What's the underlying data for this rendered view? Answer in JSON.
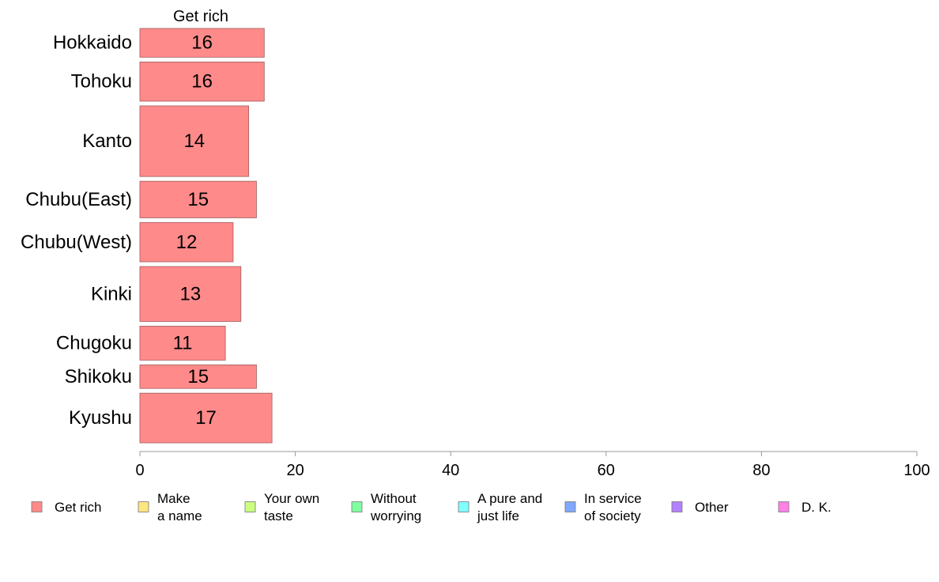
{
  "chart_data": {
    "type": "bar",
    "orientation": "horizontal",
    "series_title": "Get rich",
    "categories": [
      "Hokkaido",
      "Tohoku",
      "Kanto",
      "Chubu(East)",
      "Chubu(West)",
      "Kinki",
      "Chugoku",
      "Shikoku",
      "Kyushu"
    ],
    "values": [
      16,
      16,
      14,
      15,
      12,
      13,
      11,
      15,
      17
    ],
    "value_labels": [
      "16",
      "16",
      "14",
      "15",
      "12",
      "13",
      "11",
      "15",
      "17"
    ],
    "bar_weights": [
      0.66,
      0.9,
      1.62,
      0.84,
      0.9,
      1.26,
      0.78,
      0.54,
      1.14
    ],
    "xlim": [
      0,
      100
    ],
    "xticks": [
      0,
      20,
      40,
      60,
      80,
      100
    ],
    "grid": false,
    "legend_position": "bottom",
    "legend": [
      {
        "label": "Get rich",
        "color": "#ff8a8a"
      },
      {
        "label": "Make\na name",
        "color": "#ffe680"
      },
      {
        "label": "Your own\ntaste",
        "color": "#ccff80"
      },
      {
        "label": "Without\nworrying",
        "color": "#80ffa0"
      },
      {
        "label": "A pure and\njust life",
        "color": "#80ffff"
      },
      {
        "label": "In service\nof society",
        "color": "#80a8ff"
      },
      {
        "label": "Other",
        "color": "#b380ff"
      },
      {
        "label": "D. K.",
        "color": "#ff80e6"
      }
    ],
    "bar_color": "#ff8a8a",
    "bar_stroke": "#a05a5a"
  }
}
